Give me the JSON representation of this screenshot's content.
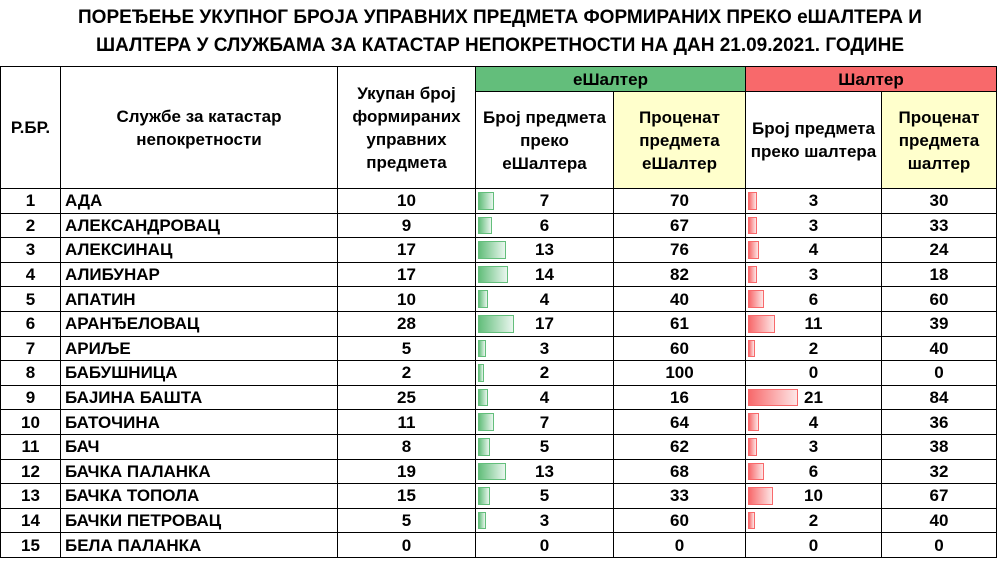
{
  "title": {
    "line1": "ПОРЕЂЕЊЕ УКУПНОГ БРОЈА УПРАВНИХ ПРЕДМЕТА ФОРМИРАНИХ ПРЕКО еШАЛТЕРА И",
    "line2": "ШАЛТЕРА У СЛУЖБАМА ЗА КАТАСТАР НЕПОКРЕТНОСТИ НА ДАН 21.09.2021. ГОДИНЕ"
  },
  "headers": {
    "rbr": "Р.БР.",
    "service": "Службе за катастар непокретности",
    "total": "Укупан број формираних управних предмета",
    "eshalter_group": "еШалтер",
    "e_count": "Број предмета преко еШалтера",
    "e_pct": "Проценат предмета еШалтер",
    "shalter_group": "Шалтер",
    "s_count": "Број предмета преко шалтера",
    "s_pct": "Проценат предмета шалтер"
  },
  "colors": {
    "green": "#63be7b",
    "red": "#f8696b",
    "yellow": "#ffffcc"
  },
  "rows": [
    {
      "rbr": "1",
      "name": "АДА",
      "total": "10",
      "e_count": "7",
      "e_pct": "70",
      "s_count": "3",
      "s_pct": "30"
    },
    {
      "rbr": "2",
      "name": "АЛЕКСАНДРОВАЦ",
      "total": "9",
      "e_count": "6",
      "e_pct": "67",
      "s_count": "3",
      "s_pct": "33"
    },
    {
      "rbr": "3",
      "name": "АЛЕКСИНАЦ",
      "total": "17",
      "e_count": "13",
      "e_pct": "76",
      "s_count": "4",
      "s_pct": "24"
    },
    {
      "rbr": "4",
      "name": "АЛИБУНАР",
      "total": "17",
      "e_count": "14",
      "e_pct": "82",
      "s_count": "3",
      "s_pct": "18"
    },
    {
      "rbr": "5",
      "name": "АПАТИН",
      "total": "10",
      "e_count": "4",
      "e_pct": "40",
      "s_count": "6",
      "s_pct": "60"
    },
    {
      "rbr": "6",
      "name": "АРАНЂЕЛОВАЦ",
      "total": "28",
      "e_count": "17",
      "e_pct": "61",
      "s_count": "11",
      "s_pct": "39"
    },
    {
      "rbr": "7",
      "name": "АРИЉЕ",
      "total": "5",
      "e_count": "3",
      "e_pct": "60",
      "s_count": "2",
      "s_pct": "40"
    },
    {
      "rbr": "8",
      "name": "БАБУШНИЦА",
      "total": "2",
      "e_count": "2",
      "e_pct": "100",
      "s_count": "0",
      "s_pct": "0"
    },
    {
      "rbr": "9",
      "name": "БАЈИНА БАШТА",
      "total": "25",
      "e_count": "4",
      "e_pct": "16",
      "s_count": "21",
      "s_pct": "84"
    },
    {
      "rbr": "10",
      "name": "БАТОЧИНА",
      "total": "11",
      "e_count": "7",
      "e_pct": "64",
      "s_count": "4",
      "s_pct": "36"
    },
    {
      "rbr": "11",
      "name": "БАЧ",
      "total": "8",
      "e_count": "5",
      "e_pct": "62",
      "s_count": "3",
      "s_pct": "38"
    },
    {
      "rbr": "12",
      "name": "БАЧКА ПАЛАНКА",
      "total": "19",
      "e_count": "13",
      "e_pct": "68",
      "s_count": "6",
      "s_pct": "32"
    },
    {
      "rbr": "13",
      "name": "БАЧКА ТОПОЛА",
      "total": "15",
      "e_count": "5",
      "e_pct": "33",
      "s_count": "10",
      "s_pct": "67"
    },
    {
      "rbr": "14",
      "name": "БАЧКИ ПЕТРОВАЦ",
      "total": "5",
      "e_count": "3",
      "e_pct": "60",
      "s_count": "2",
      "s_pct": "40"
    },
    {
      "rbr": "15",
      "name": "БЕЛА ПАЛАНКА",
      "total": "0",
      "e_count": "0",
      "e_pct": "0",
      "s_count": "0",
      "s_pct": "0"
    }
  ]
}
